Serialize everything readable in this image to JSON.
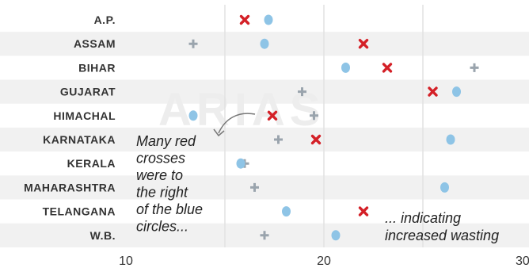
{
  "chart_data": {
    "type": "scatter",
    "title": "",
    "xlabel": "",
    "ylabel": "",
    "xlim": [
      10,
      30
    ],
    "x_ticks": [
      "10",
      "20",
      "30"
    ],
    "categories": [
      "A.P.",
      "ASSAM",
      "BIHAR",
      "GUJARAT",
      "HIMACHAL",
      "KARNATAKA",
      "KERALA",
      "MAHARASHTRA",
      "TELANGANA",
      "W.B."
    ],
    "series": [
      {
        "key": "plus",
        "marker": "plus",
        "color": "#9aa4ad",
        "values": [
          null,
          13.4,
          27.6,
          18.9,
          19.5,
          17.7,
          16.0,
          16.5,
          null,
          17.0
        ]
      },
      {
        "key": "circle",
        "marker": "circle",
        "color": "#8ec4e6",
        "values": [
          17.2,
          17.0,
          21.1,
          26.7,
          13.4,
          26.4,
          15.8,
          26.1,
          18.1,
          20.6
        ]
      },
      {
        "key": "cross",
        "marker": "cross",
        "color": "#d42027",
        "values": [
          16.0,
          22.0,
          23.2,
          25.5,
          17.4,
          19.6,
          null,
          null,
          22.0,
          null
        ]
      }
    ],
    "grid": true,
    "annotations": [
      {
        "text_lines": [
          "Many red",
          "crosses",
          "were to",
          "the right",
          "of the blue",
          "circles..."
        ]
      },
      {
        "text_lines": [
          "... indicating",
          "increased wasting"
        ]
      }
    ],
    "watermark": "ARIAS"
  }
}
